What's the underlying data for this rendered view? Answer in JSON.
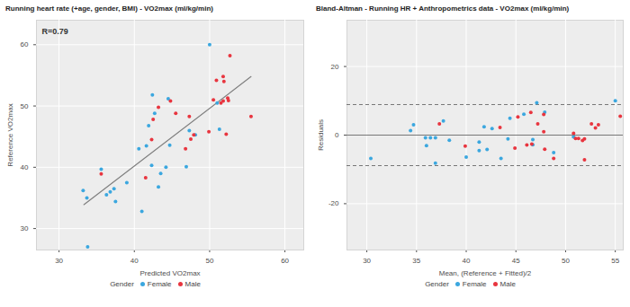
{
  "chart_data": [
    {
      "type": "scatter",
      "title": "Running heart rate (+age, gender, BMI) - VO2max (ml/kg/min)",
      "annotation": "R=0.79",
      "x_label": "Predicted VO2max",
      "y_label": "Reference VO2max",
      "xlim": [
        27,
        62.5
      ],
      "xticks": [
        30,
        40,
        50,
        60
      ],
      "ylim": [
        26.5,
        64
      ],
      "yticks": [
        30,
        40,
        50,
        60
      ],
      "grid": true,
      "legend": "bottom",
      "legend_title": "Gender",
      "series": [
        {
          "name": "Female",
          "color": "#3ba7df",
          "marker": "circle",
          "x": [
            33.2,
            33.7,
            33.8,
            35.6,
            36.3,
            36.8,
            37.3,
            37.5,
            39.0,
            40.6,
            41.0,
            41.6,
            41.9,
            42.3,
            42.4,
            42.7,
            43.2,
            43.5,
            44.2,
            44.5,
            44.7,
            46.9,
            47.3,
            48.1,
            50.0,
            51.3,
            51.0
          ],
          "values": [
            36.2,
            35.0,
            27.0,
            39.7,
            35.5,
            36.0,
            36.5,
            34.4,
            37.5,
            43.0,
            32.8,
            43.5,
            46.8,
            40.3,
            51.8,
            48.8,
            36.8,
            39.0,
            40.0,
            51.2,
            43.6,
            40.1,
            46.0,
            45.3,
            60.0,
            46.2,
            50.5
          ]
        },
        {
          "name": "Male",
          "color": "#e8353f",
          "marker": "circle",
          "x": [
            35.6,
            41.5,
            42.3,
            42.5,
            43.2,
            44.8,
            45.5,
            46.8,
            47.3,
            47.5,
            47.9,
            49.9,
            50.5,
            50.9,
            51.5,
            51.8,
            51.8,
            51.9,
            52.2,
            52.4,
            52.7,
            52.5,
            55.5
          ],
          "values": [
            38.9,
            38.3,
            44.5,
            47.8,
            49.8,
            50.8,
            48.8,
            43.0,
            48.3,
            44.6,
            45.3,
            45.8,
            51.0,
            54.2,
            50.5,
            50.8,
            54.8,
            54.0,
            45.4,
            51.3,
            58.2,
            50.9,
            48.3
          ]
        }
      ],
      "trend_line": {
        "x": [
          33.3,
          55.5
        ],
        "values": [
          33.9,
          54.8
        ],
        "color": "#7f7f7f",
        "line_style": "solid"
      }
    },
    {
      "type": "scatter",
      "title": "Bland-Altman - Running HR + Anthropometrics data - VO2max (ml/kg/min)",
      "x_label": "Mean, (Reference + Fitted)/2",
      "y_label": "Residuals",
      "xlim": [
        28,
        55.8
      ],
      "xticks": [
        30,
        35,
        40,
        45,
        50,
        55
      ],
      "ylim": [
        -33.5,
        33.5
      ],
      "yticks": [
        -20,
        0,
        20
      ],
      "grid": true,
      "legend": "bottom",
      "legend_title": "Gender",
      "series": [
        {
          "name": "Female",
          "color": "#3ba7df",
          "marker": "circle",
          "x": [
            34.7,
            34.4,
            30.4,
            37.7,
            35.9,
            36.4,
            36.9,
            36.0,
            38.3,
            41.8,
            36.9,
            42.6,
            44.4,
            41.3,
            47.1,
            45.8,
            40.0,
            41.3,
            42.1,
            47.9,
            44.2,
            43.5,
            46.7,
            46.7,
            55.0,
            48.8,
            50.8
          ],
          "values": [
            3.0,
            1.3,
            -6.8,
            4.1,
            -0.8,
            -0.8,
            -0.8,
            -3.1,
            -1.5,
            2.4,
            -8.2,
            1.9,
            4.9,
            -2.0,
            9.4,
            6.1,
            -6.4,
            -4.5,
            -4.2,
            6.7,
            -1.1,
            -6.8,
            -1.3,
            -2.8,
            10.0,
            -5.1,
            -0.5
          ]
        },
        {
          "name": "Male",
          "color": "#e8353f",
          "marker": "circle",
          "x": [
            37.3,
            39.9,
            43.4,
            45.2,
            46.5,
            47.8,
            47.2,
            44.9,
            47.8,
            46.1,
            46.6,
            47.9,
            50.8,
            52.6,
            51.0,
            51.3,
            53.3,
            53.0,
            48.8,
            51.9,
            55.5,
            51.7,
            51.9
          ],
          "values": [
            3.3,
            -3.2,
            2.2,
            5.3,
            6.6,
            6.0,
            3.3,
            -3.8,
            1.0,
            -2.9,
            -2.6,
            -4.1,
            0.5,
            3.3,
            -1.0,
            -1.0,
            3.0,
            2.1,
            -6.8,
            -1.1,
            5.5,
            -1.6,
            -7.2
          ]
        }
      ],
      "hlines": [
        {
          "value": 0,
          "line_style": "solid",
          "color": "#777777"
        },
        {
          "value": 8.9,
          "line_style": "dashed",
          "color": "#777777"
        },
        {
          "value": -8.9,
          "line_style": "dashed",
          "color": "#777777"
        }
      ]
    }
  ]
}
